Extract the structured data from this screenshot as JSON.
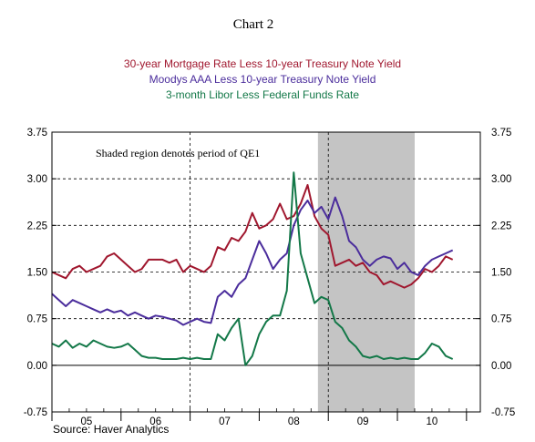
{
  "chart_data": {
    "type": "line",
    "title": "Chart 2",
    "legend_placement": "top-center",
    "x_tick_labels": [
      "05",
      "06",
      "07",
      "08",
      "09",
      "10"
    ],
    "y_ticks": [
      "3.75",
      "3.00",
      "2.25",
      "1.50",
      "0.75",
      "0.00",
      "-0.75"
    ],
    "ylim": [
      -0.75,
      3.75
    ],
    "xlim": [
      2004.5,
      2010.7
    ],
    "annotation": "Shaded region denotes period of QE1",
    "shaded_region": [
      2008.35,
      2009.75
    ],
    "dashed_verticals": [
      2006.5,
      2008.5
    ],
    "source": "Source: Haver Analytics",
    "colors": {
      "mortgage": "#a0172e",
      "moodys": "#4b2d9c",
      "libor": "#137848",
      "shade": "#c4c4c4"
    },
    "series": [
      {
        "key": "mortgage",
        "name": "30-year Mortgage Rate Less 10-year Treasury Note Yield",
        "x": [
          2004.5,
          2004.6,
          2004.7,
          2004.8,
          2004.9,
          2005.0,
          2005.1,
          2005.2,
          2005.3,
          2005.4,
          2005.5,
          2005.6,
          2005.7,
          2005.8,
          2005.9,
          2006.0,
          2006.1,
          2006.2,
          2006.3,
          2006.4,
          2006.5,
          2006.6,
          2006.7,
          2006.8,
          2006.9,
          2007.0,
          2007.1,
          2007.2,
          2007.3,
          2007.4,
          2007.5,
          2007.6,
          2007.7,
          2007.8,
          2007.9,
          2008.0,
          2008.1,
          2008.2,
          2008.3,
          2008.4,
          2008.5,
          2008.6,
          2008.7,
          2008.8,
          2008.9,
          2009.0,
          2009.1,
          2009.2,
          2009.3,
          2009.4,
          2009.5,
          2009.6,
          2009.7,
          2009.8,
          2009.9,
          2010.0,
          2010.1,
          2010.2,
          2010.3
        ],
        "values": [
          1.5,
          1.45,
          1.4,
          1.55,
          1.6,
          1.5,
          1.55,
          1.6,
          1.75,
          1.8,
          1.7,
          1.6,
          1.5,
          1.55,
          1.7,
          1.7,
          1.7,
          1.65,
          1.7,
          1.5,
          1.6,
          1.55,
          1.5,
          1.6,
          1.9,
          1.85,
          2.05,
          2.0,
          2.15,
          2.45,
          2.2,
          2.25,
          2.35,
          2.6,
          2.35,
          2.4,
          2.6,
          2.9,
          2.4,
          2.2,
          2.1,
          1.6,
          1.65,
          1.7,
          1.6,
          1.65,
          1.5,
          1.45,
          1.3,
          1.35,
          1.3,
          1.25,
          1.3,
          1.4,
          1.55,
          1.5,
          1.6,
          1.75,
          1.7
        ]
      },
      {
        "key": "moodys",
        "name": "Moodys AAA Less 10-year Treasury Note Yield",
        "x": [
          2004.5,
          2004.6,
          2004.7,
          2004.8,
          2004.9,
          2005.0,
          2005.1,
          2005.2,
          2005.3,
          2005.4,
          2005.5,
          2005.6,
          2005.7,
          2005.8,
          2005.9,
          2006.0,
          2006.1,
          2006.2,
          2006.3,
          2006.4,
          2006.5,
          2006.6,
          2006.7,
          2006.8,
          2006.9,
          2007.0,
          2007.1,
          2007.2,
          2007.3,
          2007.4,
          2007.5,
          2007.6,
          2007.7,
          2007.8,
          2007.9,
          2008.0,
          2008.1,
          2008.2,
          2008.3,
          2008.4,
          2008.5,
          2008.6,
          2008.7,
          2008.8,
          2008.9,
          2009.0,
          2009.1,
          2009.2,
          2009.3,
          2009.4,
          2009.5,
          2009.6,
          2009.7,
          2009.8,
          2009.9,
          2010.0,
          2010.1,
          2010.2,
          2010.3
        ],
        "values": [
          1.15,
          1.05,
          0.95,
          1.05,
          1.0,
          0.95,
          0.9,
          0.85,
          0.9,
          0.85,
          0.88,
          0.8,
          0.85,
          0.8,
          0.75,
          0.8,
          0.78,
          0.75,
          0.72,
          0.65,
          0.7,
          0.75,
          0.7,
          0.68,
          1.1,
          1.2,
          1.1,
          1.3,
          1.4,
          1.7,
          2.0,
          1.8,
          1.55,
          1.7,
          1.8,
          2.25,
          2.5,
          2.65,
          2.45,
          2.55,
          2.35,
          2.7,
          2.4,
          2.0,
          1.9,
          1.7,
          1.6,
          1.7,
          1.75,
          1.72,
          1.55,
          1.65,
          1.5,
          1.45,
          1.6,
          1.7,
          1.75,
          1.8,
          1.85
        ]
      },
      {
        "key": "libor",
        "name": "3-month Libor Less Federal Funds Rate",
        "x": [
          2004.5,
          2004.6,
          2004.7,
          2004.8,
          2004.9,
          2005.0,
          2005.1,
          2005.2,
          2005.3,
          2005.4,
          2005.5,
          2005.6,
          2005.7,
          2005.8,
          2005.9,
          2006.0,
          2006.1,
          2006.2,
          2006.3,
          2006.4,
          2006.5,
          2006.6,
          2006.7,
          2006.8,
          2006.9,
          2007.0,
          2007.1,
          2007.2,
          2007.3,
          2007.4,
          2007.5,
          2007.6,
          2007.7,
          2007.8,
          2007.9,
          2008.0,
          2008.1,
          2008.2,
          2008.3,
          2008.4,
          2008.5,
          2008.6,
          2008.7,
          2008.8,
          2008.9,
          2009.0,
          2009.1,
          2009.2,
          2009.3,
          2009.4,
          2009.5,
          2009.6,
          2009.7,
          2009.8,
          2009.9,
          2010.0,
          2010.1,
          2010.2,
          2010.3
        ],
        "values": [
          0.35,
          0.3,
          0.4,
          0.28,
          0.35,
          0.3,
          0.4,
          0.35,
          0.3,
          0.28,
          0.3,
          0.35,
          0.25,
          0.15,
          0.12,
          0.12,
          0.1,
          0.1,
          0.1,
          0.12,
          0.1,
          0.12,
          0.1,
          0.1,
          0.5,
          0.4,
          0.6,
          0.75,
          0.0,
          0.15,
          0.5,
          0.7,
          0.8,
          0.8,
          1.2,
          3.1,
          1.8,
          1.4,
          1.0,
          1.1,
          1.05,
          0.7,
          0.6,
          0.4,
          0.3,
          0.15,
          0.12,
          0.15,
          0.1,
          0.12,
          0.1,
          0.12,
          0.1,
          0.1,
          0.2,
          0.35,
          0.3,
          0.15,
          0.1
        ]
      }
    ]
  }
}
